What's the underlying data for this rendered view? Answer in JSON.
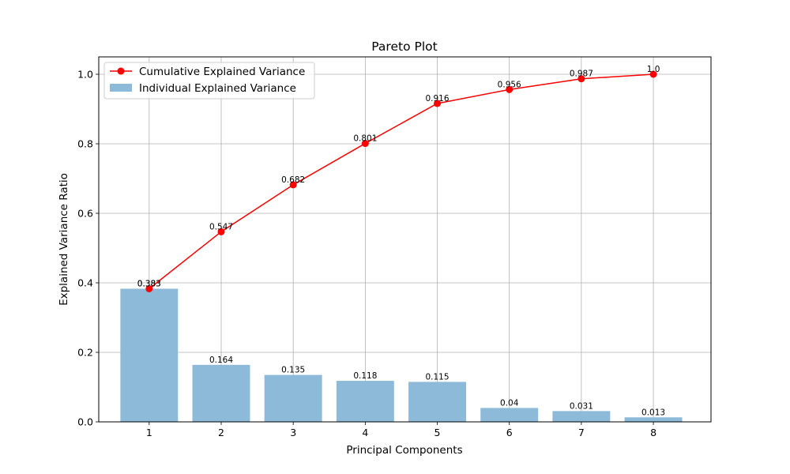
{
  "chart_data": {
    "type": "bar+line",
    "title": "Pareto Plot",
    "xlabel": "Principal Components",
    "ylabel": "Explained Variance Ratio",
    "categories": [
      "1",
      "2",
      "3",
      "4",
      "5",
      "6",
      "7",
      "8"
    ],
    "x": [
      1,
      2,
      3,
      4,
      5,
      6,
      7,
      8
    ],
    "xlim": [
      0.3,
      8.8
    ],
    "ylim": [
      0,
      1.05
    ],
    "yticks": [
      "0.0",
      "0.2",
      "0.4",
      "0.6",
      "0.8",
      "1.0"
    ],
    "grid": true,
    "legend_position": "top-left",
    "series": [
      {
        "name": "Cumulative Explained Variance",
        "type": "line",
        "color": "#ff0000",
        "values": [
          0.383,
          0.547,
          0.682,
          0.801,
          0.916,
          0.956,
          0.987,
          1.0
        ],
        "labels": [
          "0.383",
          "0.547",
          "0.682",
          "0.801",
          "0.916",
          "0.956",
          "0.987",
          "1.0"
        ]
      },
      {
        "name": "Individual Explained Variance",
        "type": "bar",
        "color": "#8ebad9",
        "values": [
          0.383,
          0.164,
          0.135,
          0.118,
          0.115,
          0.04,
          0.031,
          0.013
        ],
        "labels": [
          "0.383",
          "0.164",
          "0.135",
          "0.118",
          "0.115",
          "0.04",
          "0.031",
          "0.013"
        ]
      }
    ]
  }
}
